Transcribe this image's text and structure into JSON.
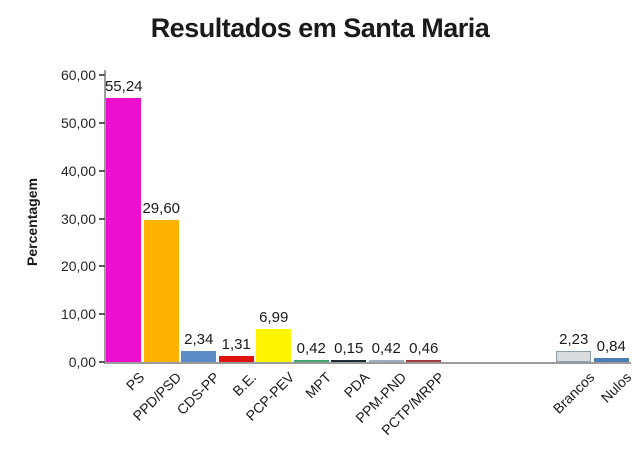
{
  "chart_data": {
    "type": "bar",
    "title": "Resultados em Santa Maria",
    "ylabel": "Percentagem",
    "xlabel": "",
    "ylim": [
      0,
      60
    ],
    "ytick_step": 10,
    "ytick_labels": [
      "60,00",
      "50,00",
      "40,00",
      "30,00",
      "20,00",
      "10,00",
      "0,00"
    ],
    "grid": false,
    "legend": "none",
    "decimal_separator": ",",
    "categories": [
      "PS",
      "PPD/PSD",
      "CDS-PP",
      "B.E.",
      "PCP-PEV",
      "MPT",
      "PDA",
      "PPM-PND",
      "PCTP/MRPP",
      "Brancos",
      "Nulos"
    ],
    "values": [
      55.24,
      29.6,
      2.34,
      1.31,
      6.99,
      0.42,
      0.15,
      0.42,
      0.46,
      2.23,
      0.84
    ],
    "value_labels": [
      "55,24",
      "29,60",
      "2,34",
      "1,31",
      "6,99",
      "0,42",
      "0,15",
      "0,42",
      "0,46",
      "2,23",
      "0,84"
    ],
    "bar_colors": [
      "#EC0FCE",
      "#FFB200",
      "#5C8CC7",
      "#E01212",
      "#FFF500",
      "#3FA56F",
      "#1C2B38",
      "#9DAFC0",
      "#A23B3B",
      "#D9DCDF",
      "#4B7DB2"
    ],
    "bar_border_colors": [
      "none",
      "none",
      "none",
      "none",
      "none",
      "none",
      "none",
      "none",
      "none",
      "#8C9DAE",
      "none"
    ],
    "slots": [
      0,
      1,
      2,
      3,
      4,
      5,
      6,
      7,
      8,
      12,
      13
    ],
    "total_slots": 14,
    "axis_color": "#9B9B9B",
    "tick_color": "#5A5A5A",
    "text_color": "#1A1A1A"
  }
}
